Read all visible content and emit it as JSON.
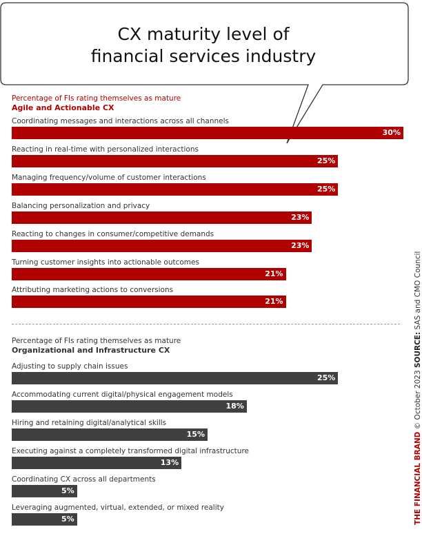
{
  "title": {
    "line1": "CX maturity level of",
    "line2": "financial services industry"
  },
  "colors": {
    "agile": "#b00000",
    "org": "#404040"
  },
  "chart_data": [
    {
      "type": "bar",
      "orientation": "horizontal",
      "subtitle": "Percentage of FIs rating themselves as mature",
      "title": "Agile and Actionable CX",
      "xlim": [
        0,
        30
      ],
      "categories": [
        "Coordinating messages and interactions across all channels",
        "Reacting in real-time with personalized interactions",
        "Managing frequency/volume of customer interactions",
        "Balancing personalization and privacy",
        "Reacting to changes in consumer/competitive demands",
        "Turning customer insights into actionable outcomes",
        "Attributing marketing actions to conversions"
      ],
      "values": [
        30,
        25,
        25,
        23,
        23,
        21,
        21
      ],
      "labels": [
        "30%",
        "25%",
        "25%",
        "23%",
        "23%",
        "21%",
        "21%"
      ]
    },
    {
      "type": "bar",
      "orientation": "horizontal",
      "subtitle": "Percentage of FIs rating themselves as mature",
      "title": "Organizational and Infrastructure CX",
      "xlim": [
        0,
        30
      ],
      "categories": [
        "Adjusting to supply chain issues",
        "Accommodating current digital/physical engagement models",
        "Hiring and retaining digital/analytical skills",
        "Executing against a completely transformed digital infrastructure",
        "Coordinating CX across all departments",
        "Leveraging augmented, virtual, extended, or mixed reality"
      ],
      "values": [
        25,
        18,
        15,
        13,
        5,
        5
      ],
      "labels": [
        "25%",
        "18%",
        "15%",
        "13%",
        "5%",
        "5%"
      ]
    }
  ],
  "side_text": {
    "brand": "THE FINANCIAL BRAND",
    "date": " © October 2023 ",
    "source_label": "SOURCE:",
    "source": " SAS and CMO Council"
  }
}
